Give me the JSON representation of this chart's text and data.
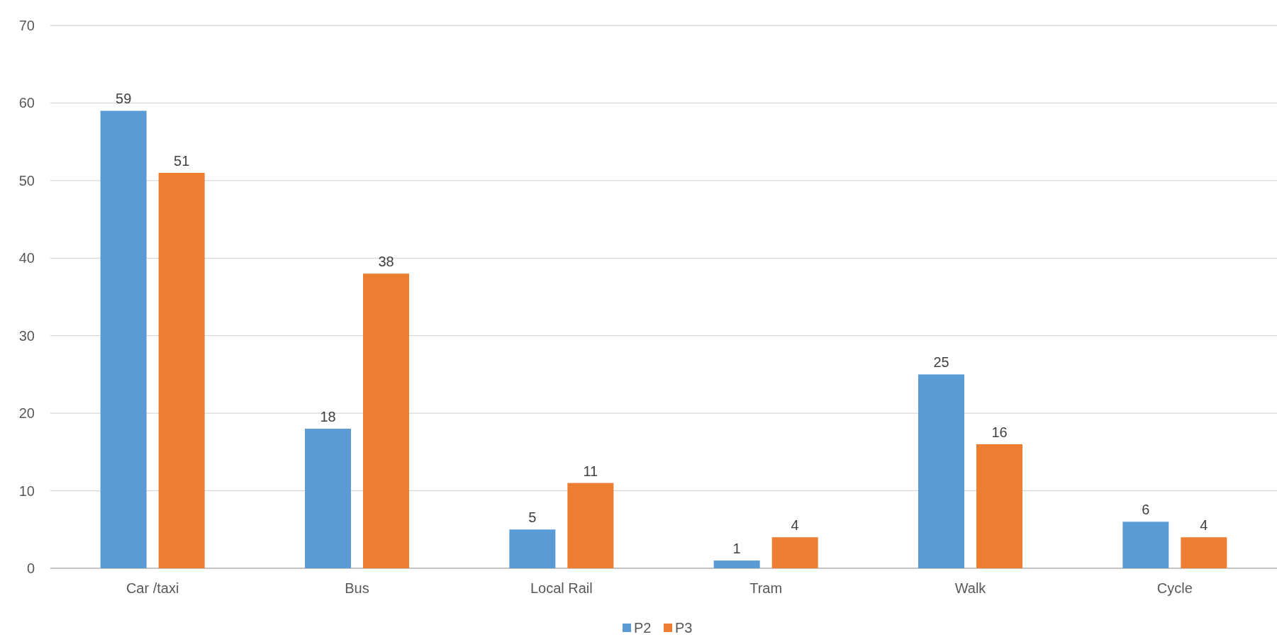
{
  "chart_data": {
    "type": "bar",
    "categories": [
      "Car /taxi",
      "Bus",
      "Local Rail",
      "Tram",
      "Walk",
      "Cycle"
    ],
    "series": [
      {
        "name": "P2",
        "color": "#5b9bd5",
        "values": [
          59,
          18,
          5,
          1,
          25,
          6
        ]
      },
      {
        "name": "P3",
        "color": "#ed7d31",
        "values": [
          51,
          38,
          11,
          4,
          16,
          4
        ]
      }
    ],
    "ylim": [
      0,
      70
    ],
    "yticks": [
      0,
      10,
      20,
      30,
      40,
      50,
      60,
      70
    ],
    "grid": "y",
    "legend": "bottom",
    "data_labels": true
  }
}
